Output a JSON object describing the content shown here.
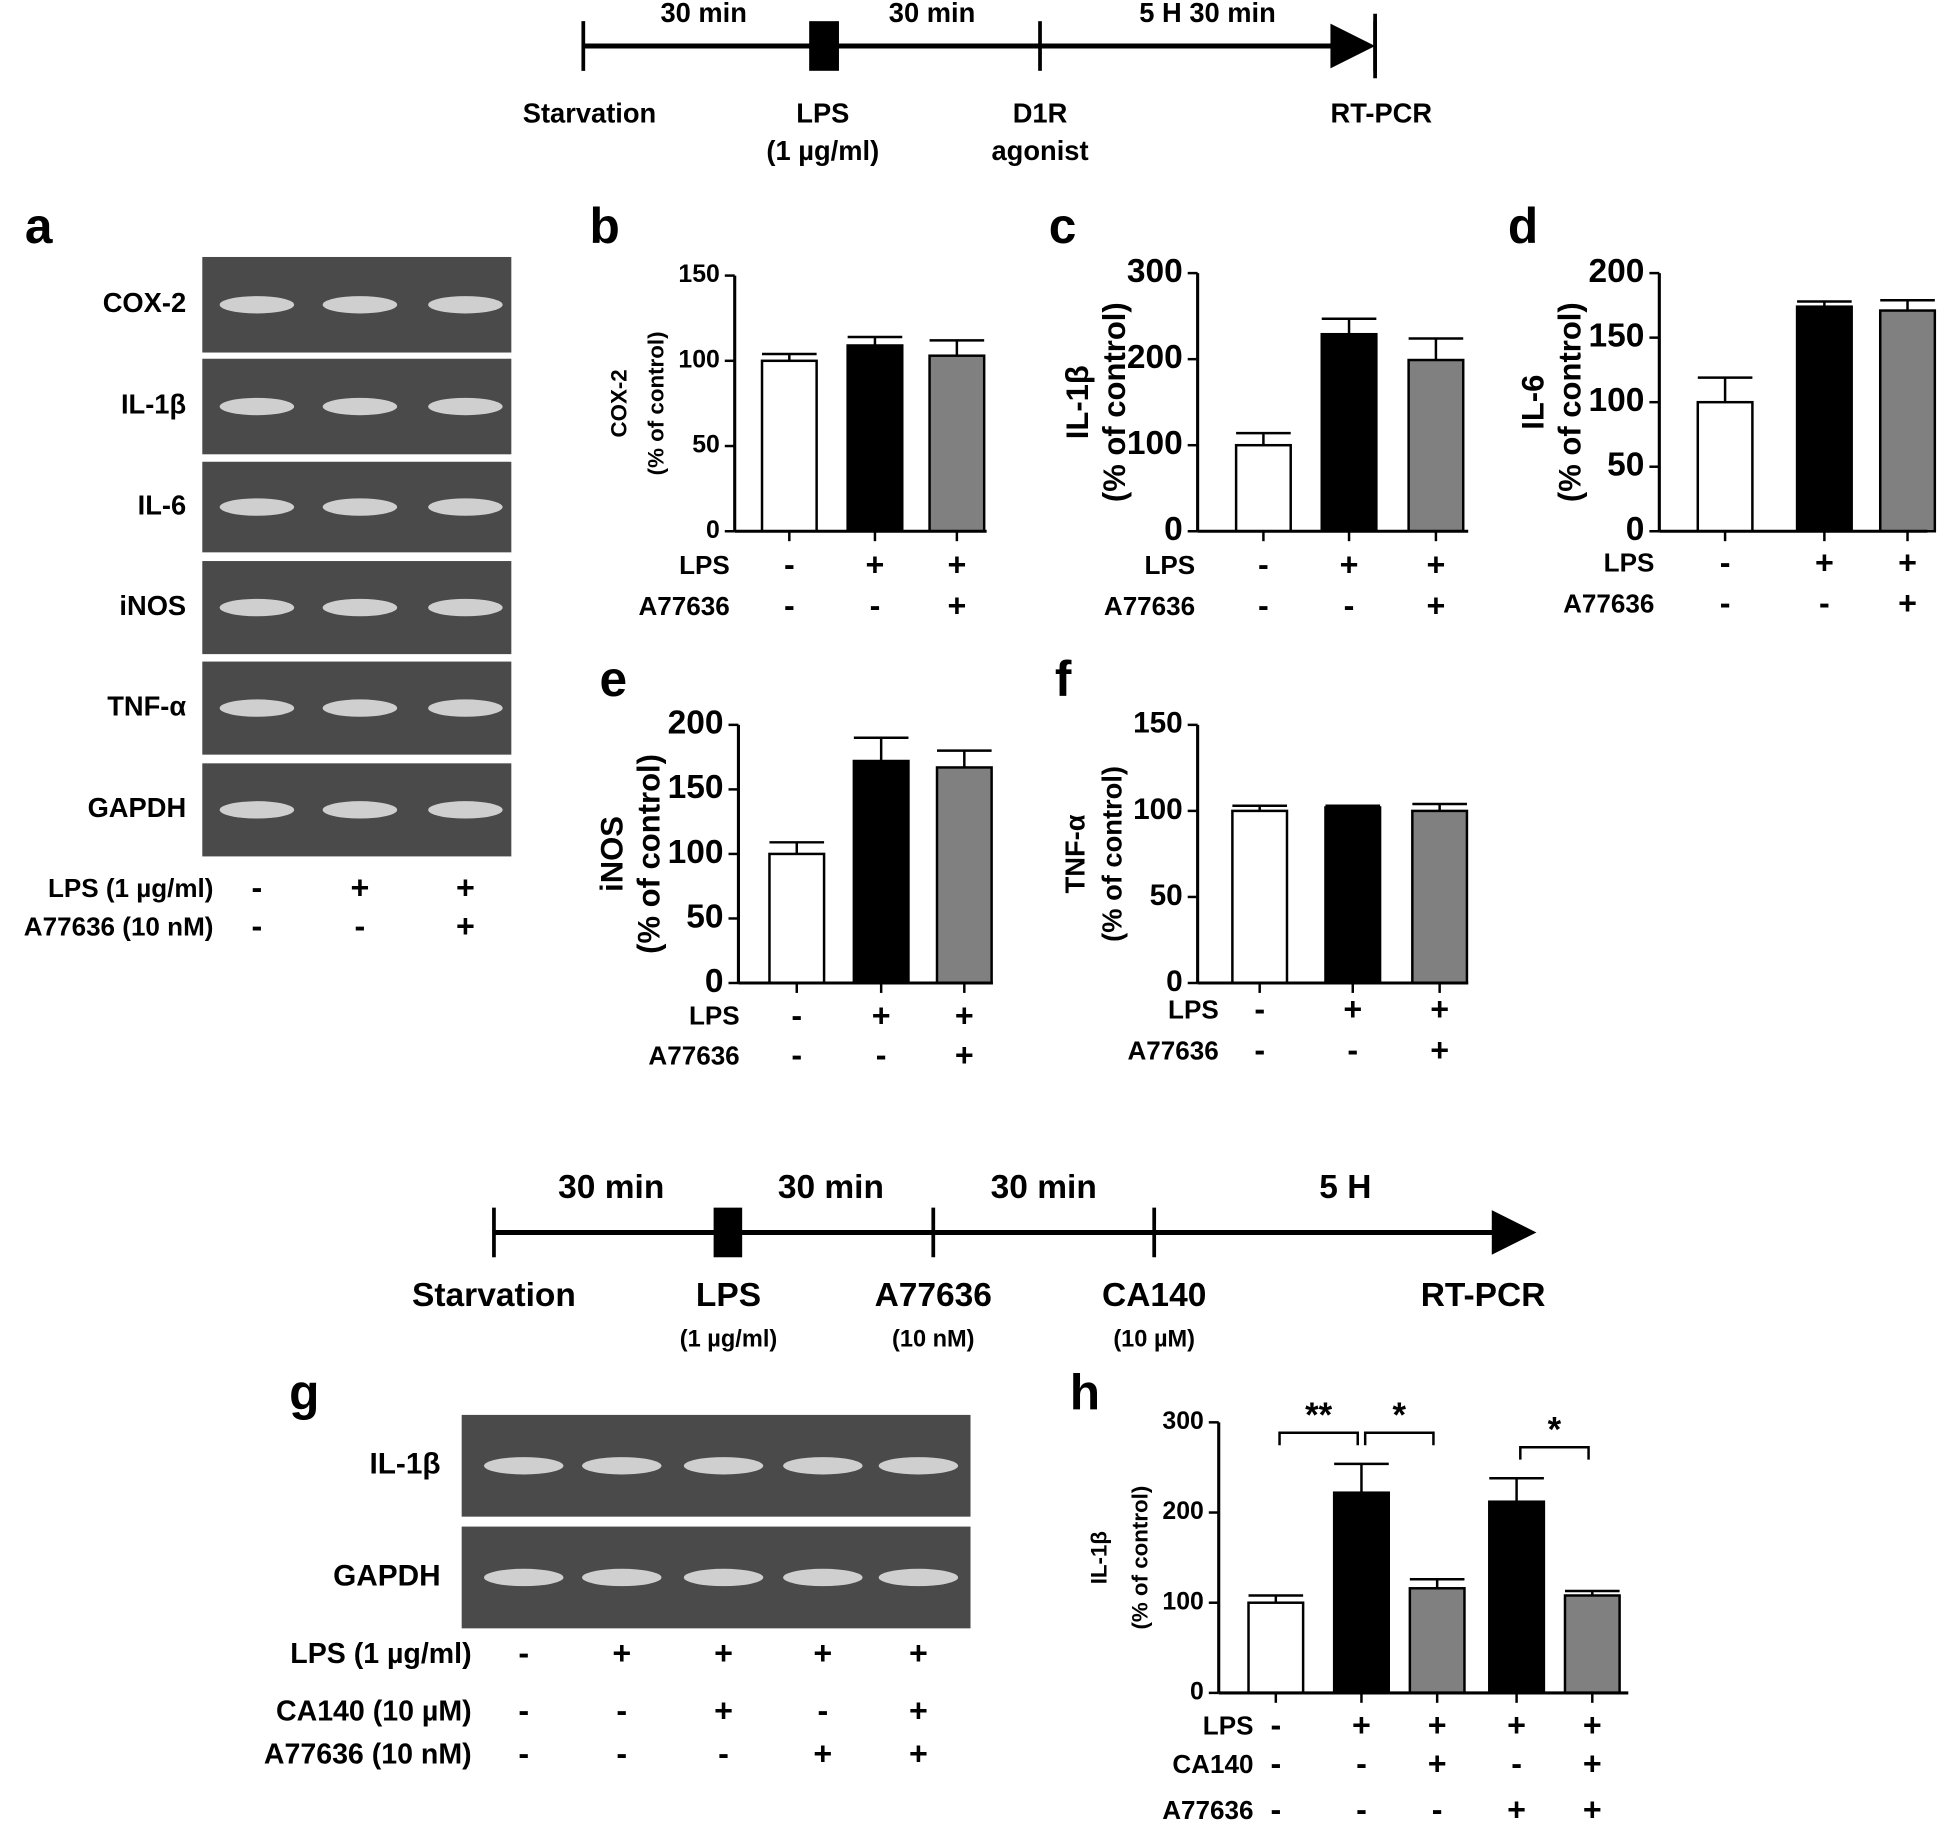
{
  "timelines": [
    {
      "durations": [
        "30 min",
        "30 min",
        "5 H 30 min"
      ],
      "events": [
        {
          "label": "Starvation"
        },
        {
          "label": "LPS",
          "sub": "(1 µg/ml)"
        },
        {
          "label": "D1R",
          "sub": "agonist"
        },
        {
          "label": "RT-PCR"
        }
      ]
    },
    {
      "durations": [
        "30 min",
        "30 min",
        "30 min",
        "5 H"
      ],
      "events": [
        {
          "label": "Starvation"
        },
        {
          "label": "LPS",
          "sub": "(1 µg/ml)"
        },
        {
          "label": "A77636",
          "sub": "(10 nM)"
        },
        {
          "label": "CA140",
          "sub": "(10 µM)"
        },
        {
          "label": "RT-PCR"
        }
      ]
    }
  ],
  "gels": [
    {
      "panel": "a",
      "bands": [
        "COX-2",
        "IL-1β",
        "IL-6",
        "iNOS",
        "TNF-α",
        "GAPDH"
      ],
      "conditions": [
        {
          "label": "LPS (1 µg/ml)",
          "signs": [
            "-",
            "+",
            "+"
          ]
        },
        {
          "label": "A77636 (10 nM)",
          "signs": [
            "-",
            "-",
            "+"
          ]
        }
      ]
    },
    {
      "panel": "g",
      "bands": [
        "IL-1β",
        "GAPDH"
      ],
      "conditions": [
        {
          "label": "LPS (1 µg/ml)",
          "signs": [
            "-",
            "+",
            "+",
            "+",
            "+"
          ]
        },
        {
          "label": "CA140 (10 µM)",
          "signs": [
            "-",
            "-",
            "+",
            "-",
            "+"
          ]
        },
        {
          "label": "A77636 (10 nM)",
          "signs": [
            "-",
            "-",
            "-",
            "+",
            "+"
          ]
        }
      ]
    }
  ],
  "chart_data": [
    {
      "type": "bar",
      "panel": "b",
      "ylabel": "COX-2",
      "ylabel_note": "(% of control)",
      "ylim": [
        0,
        150
      ],
      "yticks": [
        0,
        50,
        100,
        150
      ],
      "series": [
        {
          "values": [
            100,
            109,
            103
          ],
          "errors": [
            4,
            5,
            9
          ],
          "colors": [
            "#ffffff",
            "#000000",
            "#808080"
          ]
        }
      ],
      "conditions": [
        {
          "label": "LPS",
          "signs": [
            "-",
            "+",
            "+"
          ]
        },
        {
          "label": "A77636",
          "signs": [
            "-",
            "-",
            "+"
          ]
        }
      ]
    },
    {
      "type": "bar",
      "panel": "c",
      "ylabel": "IL-1β",
      "ylabel_note": "(% of control)",
      "ylim": [
        0,
        300
      ],
      "yticks": [
        0,
        100,
        200,
        300
      ],
      "series": [
        {
          "values": [
            100,
            229,
            199
          ],
          "errors": [
            14,
            18,
            25
          ],
          "colors": [
            "#ffffff",
            "#000000",
            "#808080"
          ]
        }
      ],
      "conditions": [
        {
          "label": "LPS",
          "signs": [
            "-",
            "+",
            "+"
          ]
        },
        {
          "label": "A77636",
          "signs": [
            "-",
            "-",
            "+"
          ]
        }
      ]
    },
    {
      "type": "bar",
      "panel": "d",
      "ylabel": "IL-6",
      "ylabel_note": "(% of control)",
      "ylim": [
        0,
        200
      ],
      "yticks": [
        0,
        50,
        100,
        150,
        200
      ],
      "series": [
        {
          "values": [
            100,
            174,
            171
          ],
          "errors": [
            19,
            4,
            8
          ],
          "colors": [
            "#ffffff",
            "#000000",
            "#808080"
          ]
        }
      ],
      "conditions": [
        {
          "label": "LPS",
          "signs": [
            "-",
            "+",
            "+"
          ]
        },
        {
          "label": "A77636",
          "signs": [
            "-",
            "-",
            "+"
          ]
        }
      ]
    },
    {
      "type": "bar",
      "panel": "e",
      "ylabel": "iNOS",
      "ylabel_note": "(% of control)",
      "ylim": [
        0,
        200
      ],
      "yticks": [
        0,
        50,
        100,
        150,
        200
      ],
      "series": [
        {
          "values": [
            100,
            172,
            167
          ],
          "errors": [
            9,
            18,
            13
          ],
          "colors": [
            "#ffffff",
            "#000000",
            "#808080"
          ]
        }
      ],
      "conditions": [
        {
          "label": "LPS",
          "signs": [
            "-",
            "+",
            "+"
          ]
        },
        {
          "label": "A77636",
          "signs": [
            "-",
            "-",
            "+"
          ]
        }
      ]
    },
    {
      "type": "bar",
      "panel": "f",
      "ylabel": "TNF-α",
      "ylabel_note": "(% of control)",
      "ylim": [
        0,
        150
      ],
      "yticks": [
        0,
        50,
        100,
        150
      ],
      "series": [
        {
          "values": [
            100,
            102,
            100
          ],
          "errors": [
            3,
            1,
            4
          ],
          "colors": [
            "#ffffff",
            "#000000",
            "#808080"
          ]
        }
      ],
      "conditions": [
        {
          "label": "LPS",
          "signs": [
            "-",
            "+",
            "+"
          ]
        },
        {
          "label": "A77636",
          "signs": [
            "-",
            "-",
            "+"
          ]
        }
      ]
    },
    {
      "type": "bar",
      "panel": "h",
      "ylabel": "IL-1β",
      "ylabel_note": "(% of control)",
      "ylim": [
        0,
        300
      ],
      "yticks": [
        0,
        100,
        200,
        300
      ],
      "series": [
        {
          "values": [
            100,
            222,
            116,
            212,
            108
          ],
          "errors": [
            8,
            32,
            10,
            26,
            5
          ],
          "colors": [
            "#ffffff",
            "#000000",
            "#808080",
            "#000000",
            "#808080"
          ]
        }
      ],
      "conditions": [
        {
          "label": "LPS",
          "signs": [
            "-",
            "+",
            "+",
            "+",
            "+"
          ]
        },
        {
          "label": "CA140",
          "signs": [
            "-",
            "-",
            "+",
            "-",
            "+"
          ]
        },
        {
          "label": "A77636",
          "signs": [
            "-",
            "-",
            "-",
            "+",
            "+"
          ]
        }
      ],
      "significance": [
        {
          "from": 0,
          "to": 1,
          "label": "**"
        },
        {
          "from": 1,
          "to": 2,
          "label": "*"
        },
        {
          "from": 3,
          "to": 4,
          "label": "*"
        }
      ]
    }
  ]
}
